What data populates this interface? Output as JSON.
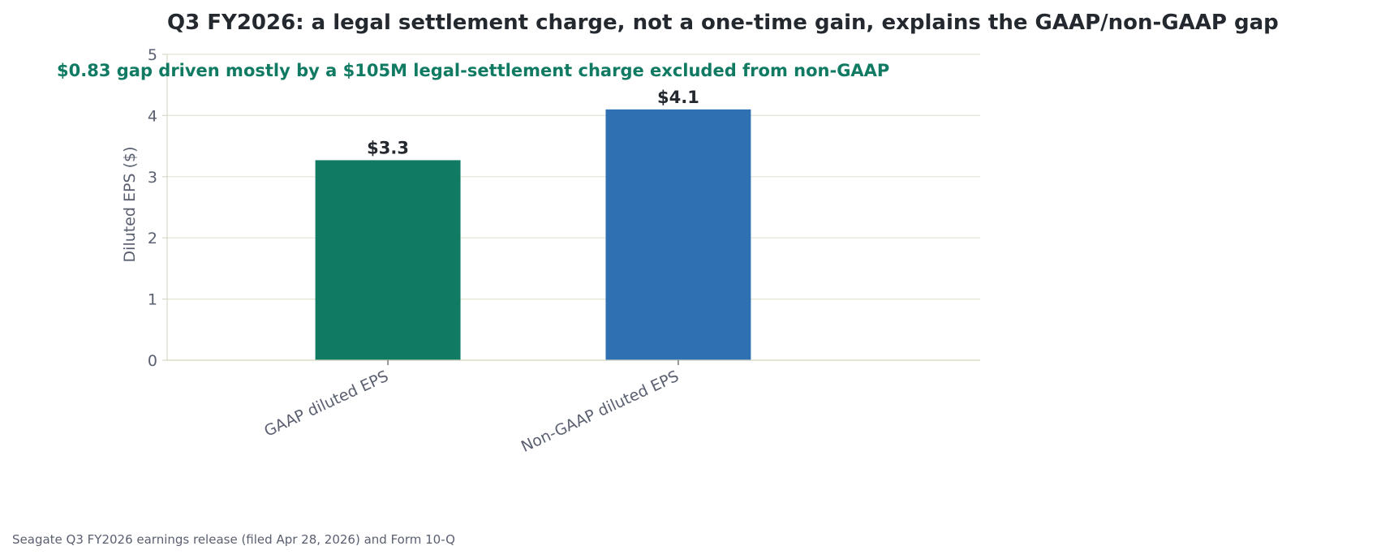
{
  "chart_data": {
    "type": "bar",
    "title": "Q3 FY2026: a legal settlement charge, not a one-time gain, explains the GAAP/non-GAAP gap",
    "subtitle": "$0.83 gap driven mostly by a $105M legal-settlement charge excluded from non-GAAP",
    "xlabel": "",
    "ylabel": "Diluted EPS ($)",
    "categories": [
      "GAAP diluted EPS",
      "Non-GAAP diluted EPS"
    ],
    "values": [
      3.27,
      4.1
    ],
    "value_labels": [
      "$3.3",
      "$4.1"
    ],
    "bar_colors": [
      "#107a62",
      "#2f70b3"
    ],
    "ylim": [
      0,
      5
    ],
    "yticks": [
      0,
      1,
      2,
      3,
      4,
      5
    ],
    "ytick_labels": [
      "0",
      "1",
      "2",
      "3",
      "4",
      "5"
    ],
    "grid": "y",
    "legend": "none",
    "source": "Seagate Q3 FY2026 earnings release (filed Apr 28, 2026) and Form 10-Q"
  },
  "colors": {
    "title": "#24292f",
    "subtitle": "#107a62",
    "tick_text": "#5a6070",
    "axis": "#d8d8c4",
    "grid": "#e4e4d4",
    "data_label": "#24292f",
    "source": "#5a6070"
  }
}
